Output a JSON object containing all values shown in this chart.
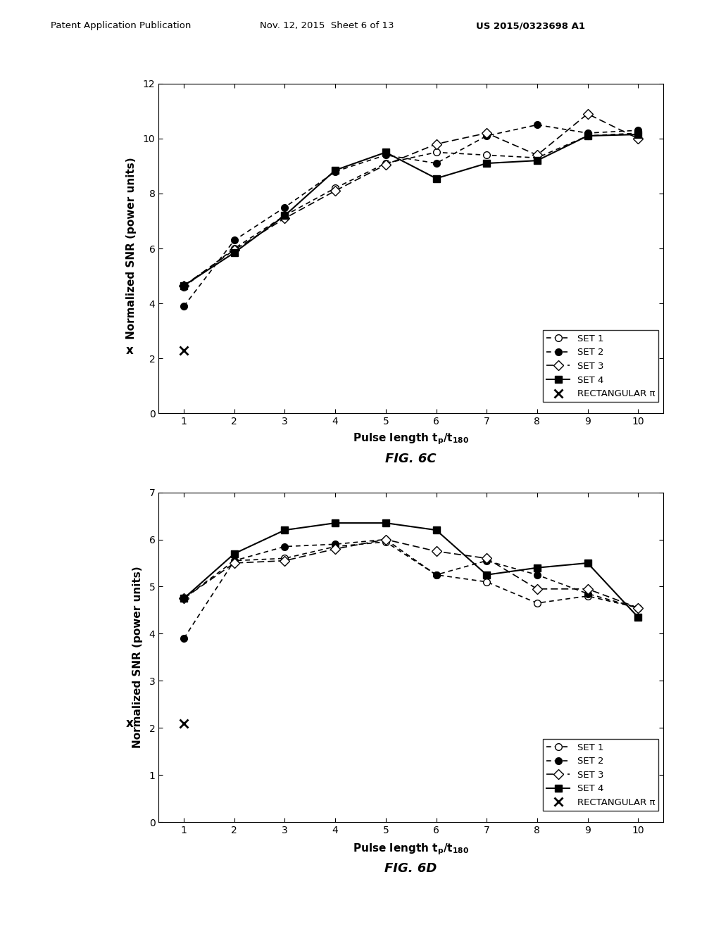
{
  "header_left": "Patent Application Publication",
  "header_center": "Nov. 12, 2015  Sheet 6 of 13",
  "header_right": "US 2015/0323698 A1",
  "fig6c": {
    "title": "FIG. 6C",
    "ylabel": "Normalized SNR (power units)",
    "xlim": [
      0.5,
      10.5
    ],
    "ylim": [
      0,
      12
    ],
    "yticks": [
      0,
      2,
      4,
      6,
      8,
      10,
      12
    ],
    "xticks": [
      1,
      2,
      3,
      4,
      5,
      6,
      7,
      8,
      9,
      10
    ],
    "set1_x": [
      1,
      2,
      3,
      4,
      5,
      6,
      7,
      8,
      9,
      10
    ],
    "set1_y": [
      4.6,
      6.0,
      7.2,
      8.2,
      9.1,
      9.5,
      9.4,
      9.3,
      10.1,
      10.2
    ],
    "set2_x": [
      1,
      2,
      3,
      4,
      5,
      6,
      7,
      8,
      9,
      10
    ],
    "set2_y": [
      3.9,
      6.3,
      7.5,
      8.8,
      9.4,
      9.1,
      10.1,
      10.5,
      10.2,
      10.3
    ],
    "set3_x": [
      1,
      2,
      3,
      4,
      5,
      6,
      7,
      8,
      9,
      10
    ],
    "set3_y": [
      4.65,
      5.95,
      7.1,
      8.1,
      9.05,
      9.8,
      10.2,
      9.4,
      10.9,
      10.0
    ],
    "set4_x": [
      1,
      2,
      3,
      4,
      5,
      6,
      7,
      8,
      9,
      10
    ],
    "set4_y": [
      4.65,
      5.85,
      7.2,
      8.85,
      9.5,
      8.55,
      9.1,
      9.2,
      10.1,
      10.15
    ],
    "rect_x": [
      1
    ],
    "rect_y": [
      2.3
    ]
  },
  "fig6d": {
    "title": "FIG. 6D",
    "ylabel": "Normalized SNR (power units)",
    "xlim": [
      0.5,
      10.5
    ],
    "ylim": [
      0,
      7
    ],
    "yticks": [
      0,
      1,
      2,
      3,
      4,
      5,
      6,
      7
    ],
    "xticks": [
      1,
      2,
      3,
      4,
      5,
      6,
      7,
      8,
      9,
      10
    ],
    "set1_x": [
      1,
      2,
      3,
      4,
      5,
      6,
      7,
      8,
      9,
      10
    ],
    "set1_y": [
      4.75,
      5.55,
      5.6,
      5.85,
      5.95,
      5.25,
      5.1,
      4.65,
      4.8,
      4.55
    ],
    "set2_x": [
      1,
      2,
      3,
      4,
      5,
      6,
      7,
      8,
      9,
      10
    ],
    "set2_y": [
      3.9,
      5.55,
      5.85,
      5.9,
      6.0,
      5.25,
      5.55,
      5.25,
      4.85,
      4.55
    ],
    "set3_x": [
      1,
      2,
      3,
      4,
      5,
      6,
      7,
      8,
      9,
      10
    ],
    "set3_y": [
      4.75,
      5.5,
      5.55,
      5.8,
      6.0,
      5.75,
      5.6,
      4.95,
      4.95,
      4.55
    ],
    "set4_x": [
      1,
      2,
      3,
      4,
      5,
      6,
      7,
      8,
      9,
      10
    ],
    "set4_y": [
      4.75,
      5.7,
      6.2,
      6.35,
      6.35,
      6.2,
      5.25,
      5.4,
      5.5,
      4.35
    ],
    "rect_x": [
      1
    ],
    "rect_y": [
      2.1
    ]
  }
}
